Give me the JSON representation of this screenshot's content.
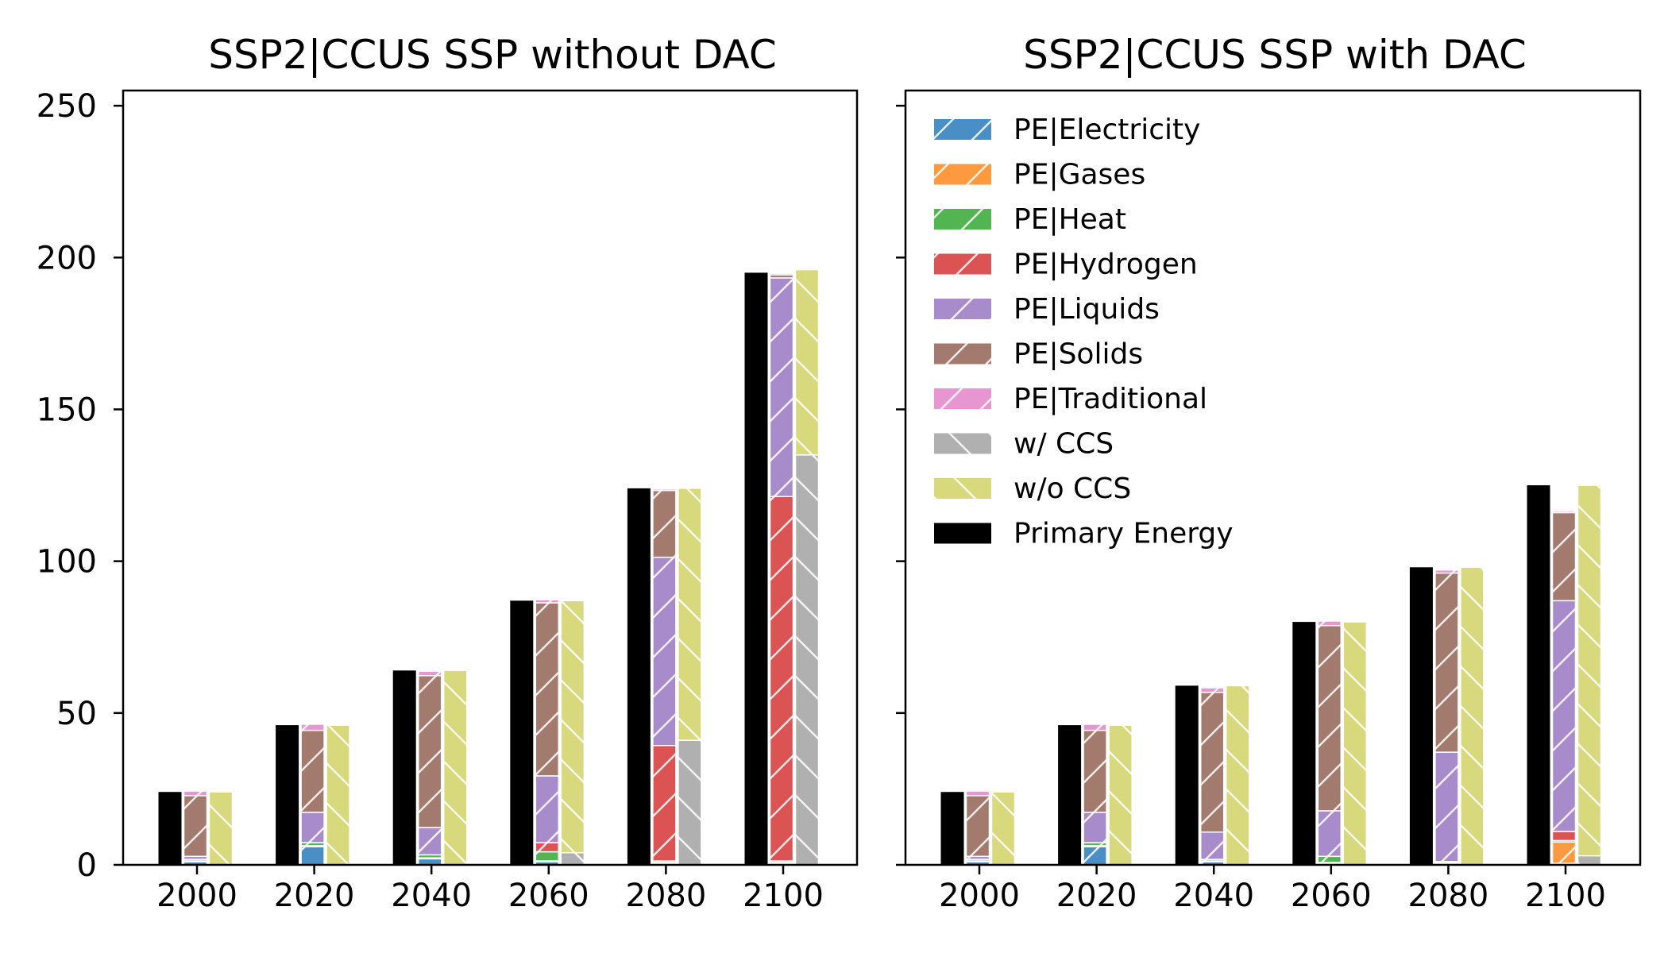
{
  "chart_data": {
    "type": "bar",
    "stacked": true,
    "categories": [
      "2000",
      "2020",
      "2040",
      "2060",
      "2080",
      "2100"
    ],
    "ylim": [
      0,
      255
    ],
    "yticks": [
      0,
      50,
      100,
      150,
      200,
      250
    ],
    "grid": false,
    "legend": {
      "placement": "upper-left of right panel",
      "entries": [
        {
          "name": "PE|Electricity",
          "color": "#4a8ec6",
          "hatch": "/"
        },
        {
          "name": "PE|Gases",
          "color": "#fd9a40",
          "hatch": "/"
        },
        {
          "name": "PE|Heat",
          "color": "#53b452",
          "hatch": "/"
        },
        {
          "name": "PE|Hydrogen",
          "color": "#dc5354",
          "hatch": "/"
        },
        {
          "name": "PE|Liquids",
          "color": "#a78bca",
          "hatch": "/"
        },
        {
          "name": "PE|Solids",
          "color": "#a37a6e",
          "hatch": "/"
        },
        {
          "name": "PE|Traditional",
          "color": "#e797cf",
          "hatch": "/"
        },
        {
          "name": "w/ CCS",
          "color": "#b0b0b0",
          "hatch": "\\"
        },
        {
          "name": "w/o CCS",
          "color": "#d8d87c",
          "hatch": "\\"
        },
        {
          "name": "Primary Energy",
          "color": "#000000",
          "hatch": ""
        }
      ]
    },
    "panels": [
      {
        "title": "SSP2|CCUS SSP without DAC",
        "primary_energy": [
          24,
          46,
          64,
          87,
          124,
          195
        ],
        "carrier_stack": [
          {
            "name": "PE|Electricity",
            "values": [
              1,
              6,
              2,
              1,
              0.5,
              0.5
            ]
          },
          {
            "name": "PE|Gases",
            "values": [
              0.3,
              0.3,
              0.3,
              0.3,
              0.3,
              0.3
            ]
          },
          {
            "name": "PE|Heat",
            "values": [
              0.5,
              1,
              1,
              3,
              0.5,
              0.5
            ]
          },
          {
            "name": "PE|Hydrogen",
            "values": [
              0,
              0,
              0,
              3,
              38,
              120
            ]
          },
          {
            "name": "PE|Liquids",
            "values": [
              1,
              10,
              9,
              22,
              62,
              72
            ]
          },
          {
            "name": "PE|Solids",
            "values": [
              20,
              27,
              50,
              57,
              22,
              1
            ]
          },
          {
            "name": "PE|Traditional",
            "values": [
              1.5,
              2,
              1.5,
              1,
              0.5,
              0.5
            ]
          }
        ],
        "ccs_stack": [
          {
            "name": "w/ CCS",
            "values": [
              0,
              0,
              0,
              4,
              41,
              135
            ]
          },
          {
            "name": "w/o CCS",
            "values": [
              24,
              46,
              64,
              83,
              83,
              61
            ]
          }
        ]
      },
      {
        "title": "SSP2|CCUS SSP with DAC",
        "primary_energy": [
          24,
          46,
          59,
          80,
          98,
          125
        ],
        "carrier_stack": [
          {
            "name": "PE|Electricity",
            "values": [
              1,
              6,
              1,
              0.5,
              0.5,
              0.5
            ]
          },
          {
            "name": "PE|Gases",
            "values": [
              0.3,
              0.3,
              0.3,
              0.3,
              0.3,
              7
            ]
          },
          {
            "name": "PE|Heat",
            "values": [
              0.5,
              1,
              0.5,
              2,
              0.3,
              0.5
            ]
          },
          {
            "name": "PE|Hydrogen",
            "values": [
              0,
              0,
              0,
              0,
              0,
              3
            ]
          },
          {
            "name": "PE|Liquids",
            "values": [
              1,
              10,
              9,
              15,
              36,
              76
            ]
          },
          {
            "name": "PE|Solids",
            "values": [
              20,
              27,
              46,
              61,
              59,
              29
            ]
          },
          {
            "name": "PE|Traditional",
            "values": [
              1.5,
              2,
              1.5,
              1.5,
              1,
              0.5
            ]
          }
        ],
        "ccs_stack": [
          {
            "name": "w/ CCS",
            "values": [
              0,
              0,
              0,
              0,
              0,
              3
            ]
          },
          {
            "name": "w/o CCS",
            "values": [
              24,
              46,
              59,
              80,
              98,
              122
            ]
          }
        ]
      }
    ]
  }
}
